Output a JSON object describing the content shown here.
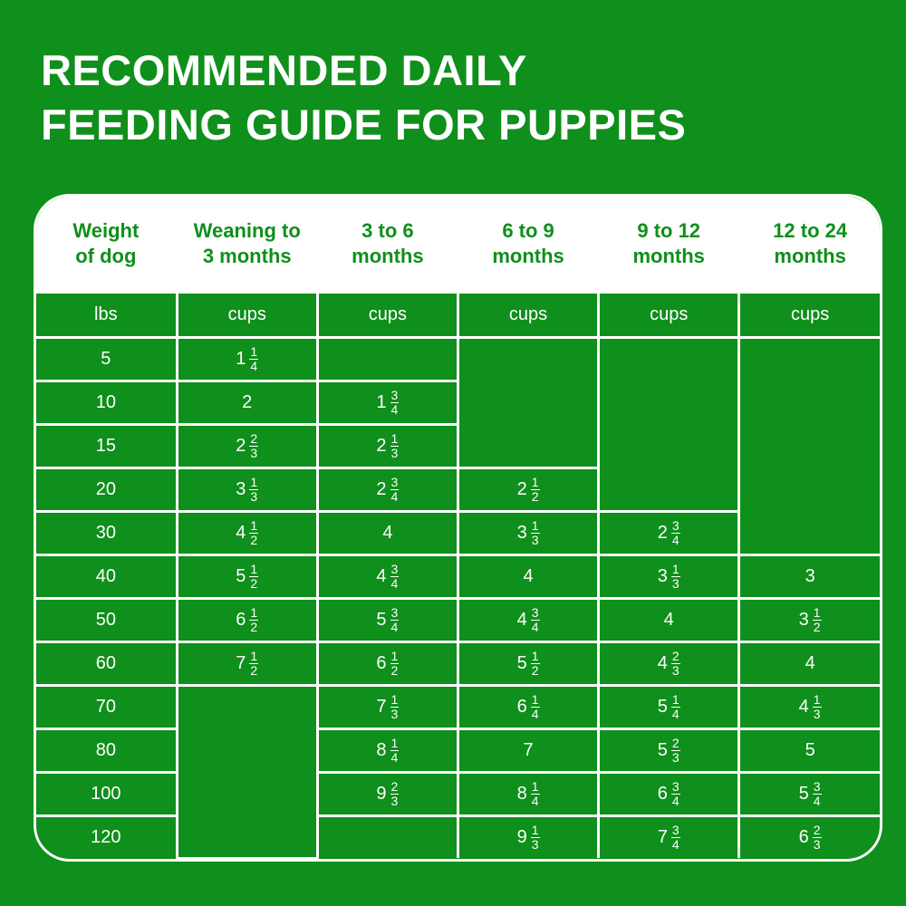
{
  "header": {
    "title": [
      "RECOMMENDED DAILY",
      "FEEDING GUIDE FOR PUPPIES"
    ]
  },
  "table": {
    "columns": [
      [
        "Weight",
        "of dog"
      ],
      [
        "Weaning to",
        "3 months"
      ],
      [
        "3 to 6",
        "months"
      ],
      [
        "6 to 9",
        "months"
      ],
      [
        "9 to 12",
        "months"
      ],
      [
        "12 to 24",
        "months"
      ]
    ],
    "units": [
      "lbs",
      "cups",
      "cups",
      "cups",
      "cups",
      "cups"
    ],
    "rows": [
      [
        5,
        {
          "whole": 1,
          "num": 1,
          "den": 4
        },
        null,
        null,
        null,
        null
      ],
      [
        10,
        2,
        {
          "whole": 1,
          "num": 3,
          "den": 4
        },
        null,
        null,
        null
      ],
      [
        15,
        {
          "whole": 2,
          "num": 2,
          "den": 3
        },
        {
          "whole": 2,
          "num": 1,
          "den": 3
        },
        null,
        null,
        null
      ],
      [
        20,
        {
          "whole": 3,
          "num": 1,
          "den": 3
        },
        {
          "whole": 2,
          "num": 3,
          "den": 4
        },
        {
          "whole": 2,
          "num": 1,
          "den": 2
        },
        null,
        null
      ],
      [
        30,
        {
          "whole": 4,
          "num": 1,
          "den": 2
        },
        4,
        {
          "whole": 3,
          "num": 1,
          "den": 3
        },
        {
          "whole": 2,
          "num": 3,
          "den": 4
        },
        null
      ],
      [
        40,
        {
          "whole": 5,
          "num": 1,
          "den": 2
        },
        {
          "whole": 4,
          "num": 3,
          "den": 4
        },
        4,
        {
          "whole": 3,
          "num": 1,
          "den": 3
        },
        3
      ],
      [
        50,
        {
          "whole": 6,
          "num": 1,
          "den": 2
        },
        {
          "whole": 5,
          "num": 3,
          "den": 4
        },
        {
          "whole": 4,
          "num": 3,
          "den": 4
        },
        4,
        {
          "whole": 3,
          "num": 1,
          "den": 2
        }
      ],
      [
        60,
        {
          "whole": 7,
          "num": 1,
          "den": 2
        },
        {
          "whole": 6,
          "num": 1,
          "den": 2
        },
        {
          "whole": 5,
          "num": 1,
          "den": 2
        },
        {
          "whole": 4,
          "num": 2,
          "den": 3
        },
        4
      ],
      [
        70,
        null,
        {
          "whole": 7,
          "num": 1,
          "den": 3
        },
        {
          "whole": 6,
          "num": 1,
          "den": 4
        },
        {
          "whole": 5,
          "num": 1,
          "den": 4
        },
        {
          "whole": 4,
          "num": 1,
          "den": 3
        }
      ],
      [
        80,
        null,
        {
          "whole": 8,
          "num": 1,
          "den": 4
        },
        7,
        {
          "whole": 5,
          "num": 2,
          "den": 3
        },
        5
      ],
      [
        100,
        null,
        {
          "whole": 9,
          "num": 2,
          "den": 3
        },
        {
          "whole": 8,
          "num": 1,
          "den": 4
        },
        {
          "whole": 6,
          "num": 3,
          "den": 4
        },
        {
          "whole": 5,
          "num": 3,
          "den": 4
        }
      ],
      [
        120,
        null,
        null,
        {
          "whole": 9,
          "num": 1,
          "den": 3
        },
        {
          "whole": 7,
          "num": 3,
          "den": 4
        },
        {
          "whole": 6,
          "num": 2,
          "den": 3
        }
      ]
    ]
  }
}
